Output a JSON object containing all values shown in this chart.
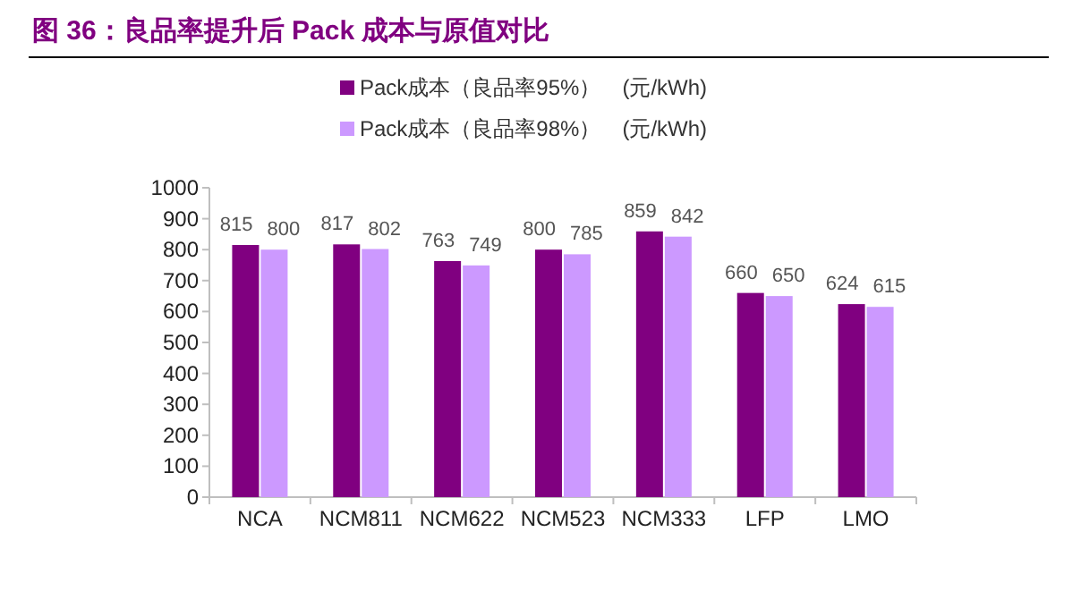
{
  "chart_data": {
    "type": "bar",
    "title": "图 36：良品率提升后 Pack 成本与原值对比",
    "categories": [
      "NCA",
      "NCM811",
      "NCM622",
      "NCM523",
      "NCM333",
      "LFP",
      "LMO"
    ],
    "series": [
      {
        "name": "Pack成本（良品率95%）　(元/kWh)",
        "color": "#800080",
        "values": [
          815,
          817,
          763,
          800,
          859,
          660,
          624
        ]
      },
      {
        "name": "Pack成本（良品率98%）　(元/kWh)",
        "color": "#cc99ff",
        "values": [
          800,
          802,
          749,
          785,
          842,
          650,
          615
        ]
      }
    ],
    "ylim": [
      0,
      1000
    ],
    "yticks": [
      0,
      100,
      200,
      300,
      400,
      500,
      600,
      700,
      800,
      900,
      1000
    ],
    "legend": "top",
    "data_labels": true
  }
}
